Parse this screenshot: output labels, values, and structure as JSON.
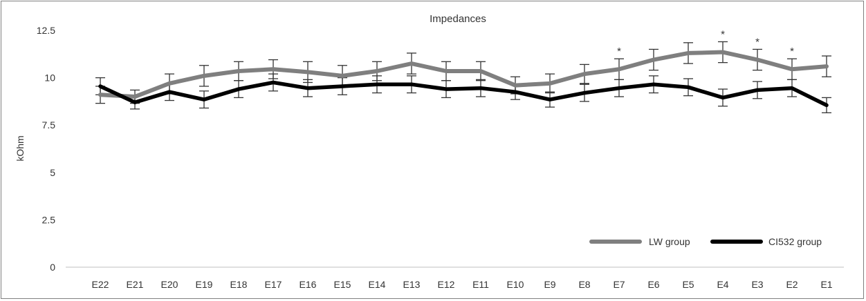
{
  "chart_data": {
    "type": "line",
    "title": "Impedances",
    "xlabel": "",
    "ylabel": "kOhm",
    "ylim": [
      0,
      12.5
    ],
    "yticks": [
      "0",
      "2.5",
      "5",
      "7.5",
      "10",
      "12.5"
    ],
    "ytick_values": [
      0,
      2.5,
      5,
      7.5,
      10,
      12.5
    ],
    "categories": [
      "E22",
      "E21",
      "E20",
      "E19",
      "E18",
      "E17",
      "E16",
      "E15",
      "E14",
      "E13",
      "E12",
      "E11",
      "E10",
      "E9",
      "E8",
      "E7",
      "E6",
      "E5",
      "E4",
      "E3",
      "E2",
      "E1"
    ],
    "series": [
      {
        "name": "LW group",
        "color": "#7f7f7f",
        "values": [
          9.1,
          9.0,
          9.7,
          10.1,
          10.35,
          10.45,
          10.3,
          10.1,
          10.35,
          10.75,
          10.35,
          10.35,
          9.6,
          9.7,
          10.2,
          10.45,
          10.95,
          11.3,
          11.35,
          10.95,
          10.45,
          10.6
        ],
        "errors": [
          0.45,
          0.35,
          0.5,
          0.55,
          0.5,
          0.5,
          0.55,
          0.55,
          0.5,
          0.55,
          0.5,
          0.5,
          0.45,
          0.5,
          0.5,
          0.55,
          0.55,
          0.55,
          0.55,
          0.55,
          0.55,
          0.55
        ]
      },
      {
        "name": "CI532 group",
        "color": "#000000",
        "values": [
          9.55,
          8.7,
          9.25,
          8.85,
          9.4,
          9.75,
          9.45,
          9.55,
          9.65,
          9.65,
          9.4,
          9.45,
          9.25,
          8.85,
          9.2,
          9.45,
          9.65,
          9.5,
          8.95,
          9.35,
          9.45,
          8.55
        ],
        "errors": [
          0.45,
          0.35,
          0.45,
          0.45,
          0.45,
          0.45,
          0.45,
          0.45,
          0.45,
          0.45,
          0.45,
          0.45,
          0.4,
          0.4,
          0.45,
          0.45,
          0.45,
          0.45,
          0.45,
          0.45,
          0.45,
          0.4
        ]
      }
    ],
    "annotations": [
      {
        "category": "E7",
        "text": "*"
      },
      {
        "category": "E4",
        "text": "*"
      },
      {
        "category": "E3",
        "text": "*"
      },
      {
        "category": "E2",
        "text": "*"
      }
    ],
    "grid": false,
    "legend_position": "bottom-right"
  }
}
